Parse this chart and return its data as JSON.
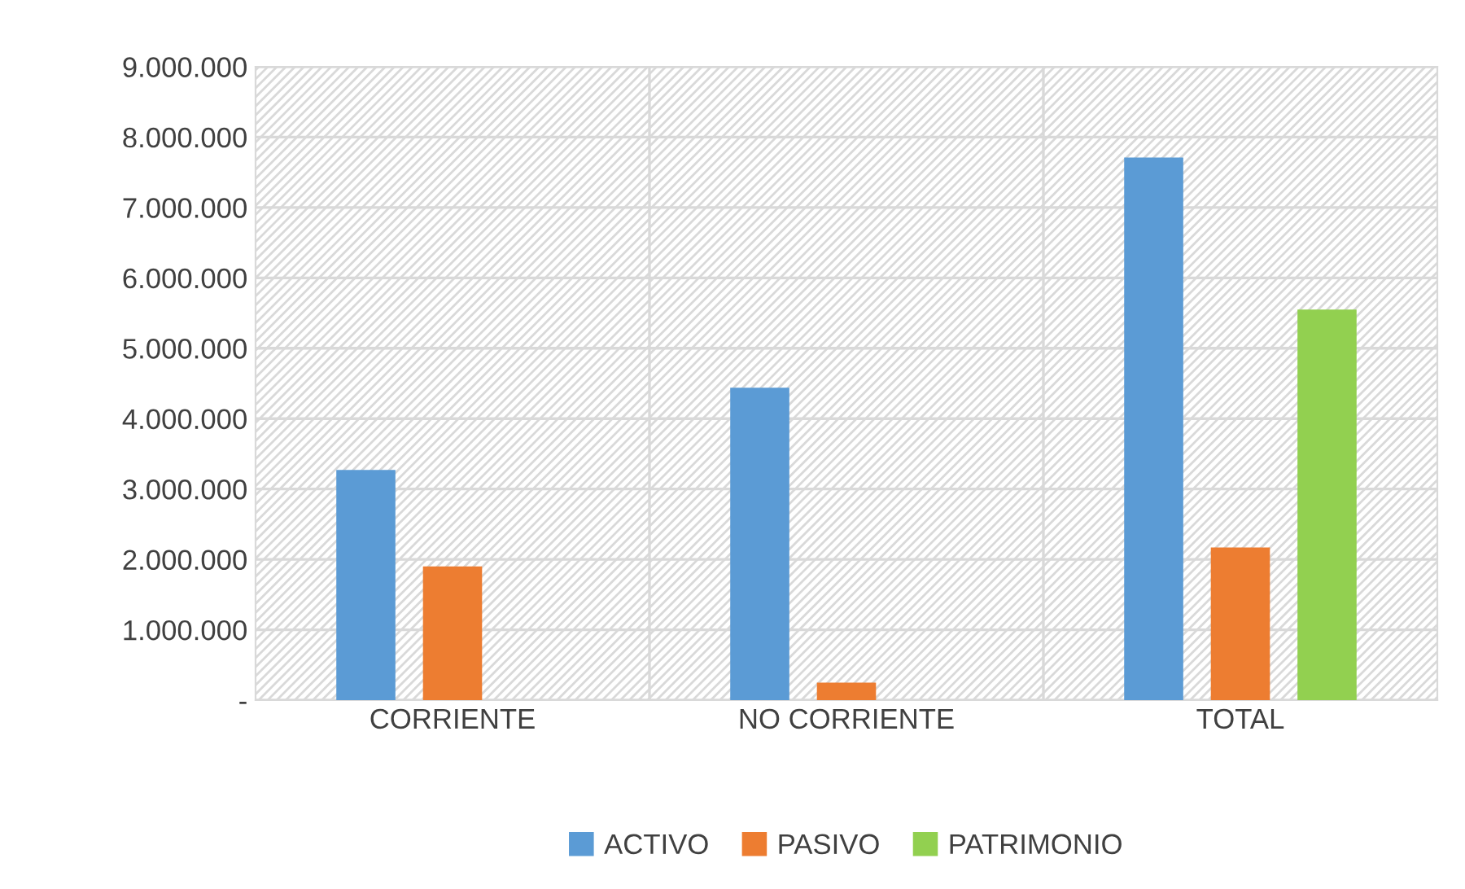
{
  "chart_data": {
    "type": "bar",
    "categories": [
      "CORRIENTE",
      "NO CORRIENTE",
      "TOTAL"
    ],
    "series": [
      {
        "name": "ACTIVO",
        "color": "#5b9bd5",
        "values": [
          3270000,
          4440000,
          7710000
        ]
      },
      {
        "name": "PASIVO",
        "color": "#ed7d31",
        "values": [
          1900000,
          250000,
          2170000
        ]
      },
      {
        "name": "PATRIMONIO",
        "color": "#92d050",
        "values": [
          null,
          null,
          5550000
        ]
      }
    ],
    "ylim": [
      0,
      9000000
    ],
    "yticks": [
      {
        "value": 0,
        "label": "-"
      },
      {
        "value": 1000000,
        "label": "1.000.000"
      },
      {
        "value": 2000000,
        "label": "2.000.000"
      },
      {
        "value": 3000000,
        "label": "3.000.000"
      },
      {
        "value": 4000000,
        "label": "4.000.000"
      },
      {
        "value": 5000000,
        "label": "5.000.000"
      },
      {
        "value": 6000000,
        "label": "6.000.000"
      },
      {
        "value": 7000000,
        "label": "7.000.000"
      },
      {
        "value": 8000000,
        "label": "8.000.000"
      },
      {
        "value": 9000000,
        "label": "9.000.000"
      }
    ],
    "grid": true,
    "legend": "bottom"
  }
}
